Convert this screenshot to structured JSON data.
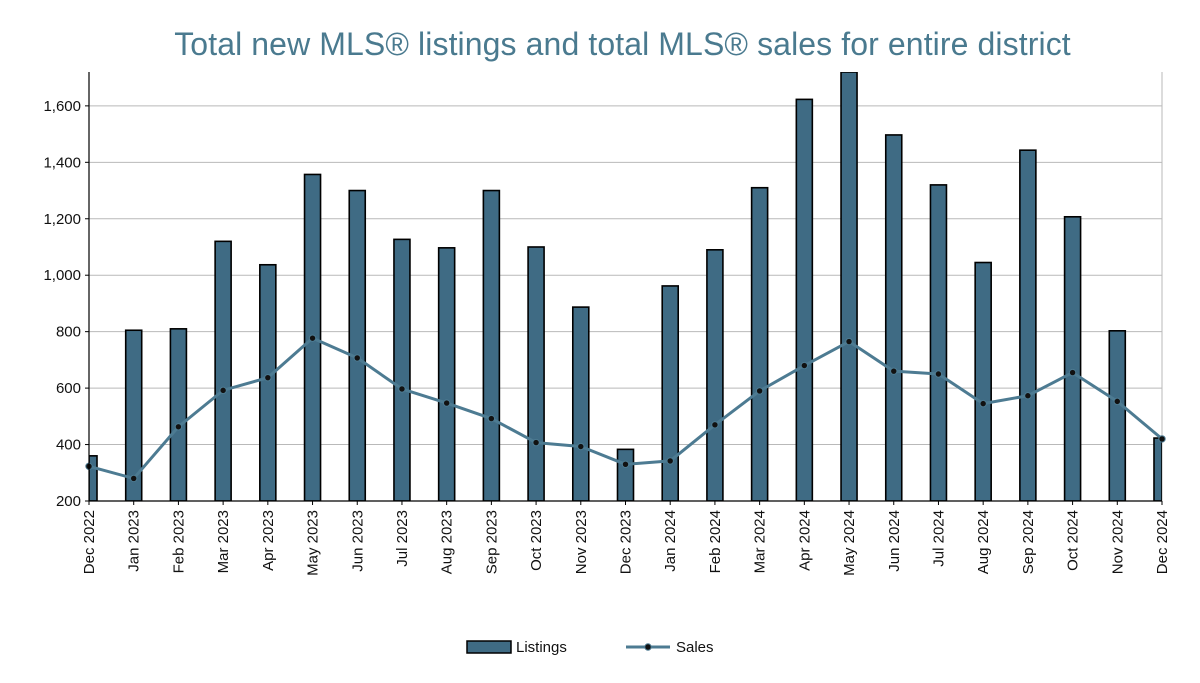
{
  "chart_data": {
    "type": "bar",
    "title": "Total new MLS® listings and total MLS® sales for entire district",
    "categories": [
      "Dec 2022",
      "Jan 2023",
      "Feb 2023",
      "Mar 2023",
      "Apr 2023",
      "May 2023",
      "Jun 2023",
      "Jul 2023",
      "Aug 2023",
      "Sep 2023",
      "Oct 2023",
      "Nov 2023",
      "Dec 2023",
      "Jan 2024",
      "Feb 2024",
      "Mar 2024",
      "Apr 2024",
      "May 2024",
      "Jun 2024",
      "Jul 2024",
      "Aug 2024",
      "Sep 2024",
      "Oct 2024",
      "Nov 2024",
      "Dec 2024"
    ],
    "series": [
      {
        "name": "Listings",
        "type": "bar",
        "color": "#3f6b84",
        "values": [
          360,
          805,
          810,
          1120,
          1037,
          1357,
          1300,
          1127,
          1097,
          1300,
          1100,
          887,
          383,
          962,
          1090,
          1310,
          1623,
          1720,
          1497,
          1320,
          1045,
          1443,
          1207,
          803,
          423
        ]
      },
      {
        "name": "Sales",
        "type": "line",
        "color": "#4d7b92",
        "values": [
          323,
          280,
          463,
          592,
          637,
          777,
          707,
          597,
          547,
          492,
          407,
          393,
          330,
          342,
          470,
          590,
          680,
          765,
          660,
          650,
          545,
          573,
          655,
          553,
          420
        ]
      }
    ],
    "ylim": [
      200,
      1720
    ],
    "yticks": [
      "200",
      "400",
      "600",
      "800",
      "1,000",
      "1,200",
      "1,400",
      "1,600"
    ],
    "ytick_values": [
      200,
      400,
      600,
      800,
      1000,
      1200,
      1400,
      1600
    ],
    "xlabel": "",
    "ylabel": "",
    "grid": true,
    "legend_position": "bottom-center",
    "colors": {
      "grid": "#b9b9b9",
      "axis": "#000000",
      "bar_outline": "#000000",
      "title": "#4a7a8f"
    }
  }
}
